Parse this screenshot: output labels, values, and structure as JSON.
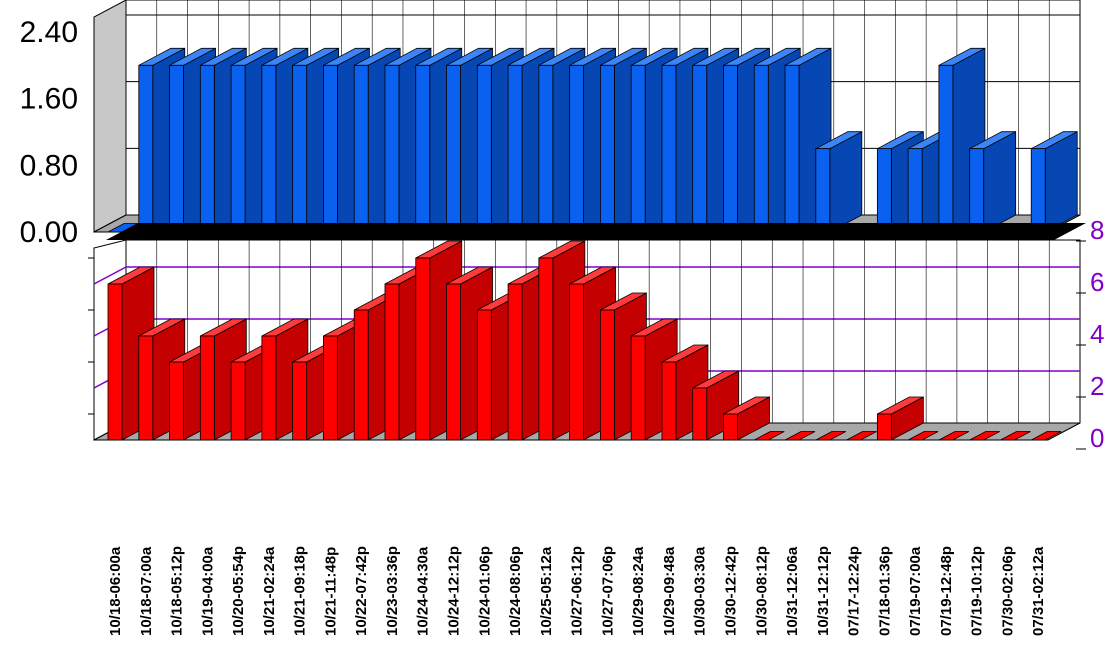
{
  "colors": {
    "top_bar": "#0a60ef",
    "top_bar_side": "#0647b4",
    "top_bar_top": "#3c85f7",
    "bottom_bar": "#ff0000",
    "bottom_bar_side": "#c40000",
    "bottom_bar_top": "#ff3a3a",
    "bottom_axis_accent": "#8000c8",
    "wall": "#c8c8c8",
    "floor": "#a8a8a8",
    "divider": "#000000"
  },
  "chart_data": [
    {
      "type": "bar",
      "style": "3d",
      "title": "",
      "xlabel": "",
      "ylabel": "",
      "ylim": [
        0,
        2.4
      ],
      "yticks": [
        "0.00",
        "0.80",
        "1.60",
        "2.40"
      ],
      "grid": true,
      "categories": [
        "10/18-06:00a",
        "10/18-07:00a",
        "10/18-05:12p",
        "10/19-04:00a",
        "10/20-05:54p",
        "10/21-02:24a",
        "10/21-09:18p",
        "10/21-11:48p",
        "10/22-07:42p",
        "10/23-03:36p",
        "10/24-04:30a",
        "10/24-12:12p",
        "10/24-01:06p",
        "10/24-08:06p",
        "10/25-05:12a",
        "10/27-06:12p",
        "10/27-07:06p",
        "10/29-08:24a",
        "10/29-09:48a",
        "10/30-03:30a",
        "10/30-12:42p",
        "10/30-08:12p",
        "10/31-12:06a",
        "10/31-12:12p",
        "07/17-12:24p",
        "07/18-01:36p",
        "07/19-07:00a",
        "07/19-12:48p",
        "07/19-10:12p",
        "07/30-02:06p",
        "07/31-02:12a"
      ],
      "series": [
        {
          "values": [
            0,
            2,
            2,
            2,
            2,
            2,
            2,
            2,
            2,
            2,
            2,
            2,
            2,
            2,
            2,
            2,
            2,
            2,
            2,
            2,
            2,
            2,
            2,
            1,
            0,
            1,
            1,
            2,
            1,
            0,
            1
          ]
        }
      ]
    },
    {
      "type": "bar",
      "style": "3d",
      "title": "",
      "xlabel": "",
      "ylabel": "",
      "ylim": [
        0,
        8
      ],
      "yticks": [
        "0",
        "2",
        "4",
        "6",
        "8"
      ],
      "grid": true,
      "categories": [
        "10/18-06:00a",
        "10/18-07:00a",
        "10/18-05:12p",
        "10/19-04:00a",
        "10/20-05:54p",
        "10/21-02:24a",
        "10/21-09:18p",
        "10/21-11:48p",
        "10/22-07:42p",
        "10/23-03:36p",
        "10/24-04:30a",
        "10/24-12:12p",
        "10/24-01:06p",
        "10/24-08:06p",
        "10/25-05:12a",
        "10/27-06:12p",
        "10/27-07:06p",
        "10/29-08:24a",
        "10/29-09:48a",
        "10/30-03:30a",
        "10/30-12:42p",
        "10/30-08:12p",
        "10/31-12:06a",
        "10/31-12:12p",
        "07/17-12:24p",
        "07/18-01:36p",
        "07/19-07:00a",
        "07/19-12:48p",
        "07/19-10:12p",
        "07/30-02:06p",
        "07/31-02:12a"
      ],
      "series": [
        {
          "values": [
            6,
            4,
            3,
            4,
            3,
            4,
            3,
            4,
            5,
            6,
            7,
            6,
            5,
            6,
            7,
            6,
            5,
            4,
            3,
            2,
            1,
            0,
            0,
            0,
            0,
            1,
            0,
            0,
            0,
            0,
            0
          ]
        }
      ]
    }
  ]
}
